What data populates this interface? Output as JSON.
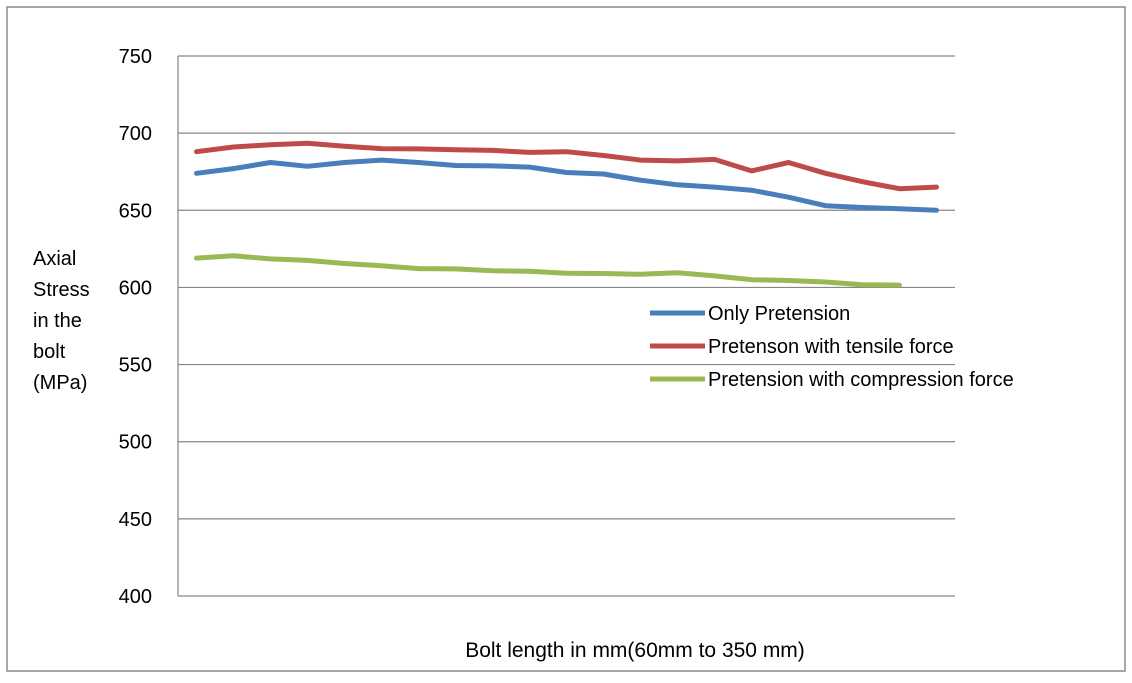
{
  "chart_data": {
    "type": "line",
    "title": "",
    "xlabel": "Bolt length in mm(60mm to 350 mm)",
    "ylabel_lines": [
      "Axial",
      "Stress",
      "in the",
      "bolt",
      "(MPa)"
    ],
    "ylim": [
      400,
      750
    ],
    "yticks": [
      400,
      450,
      500,
      550,
      600,
      650,
      700,
      750
    ],
    "grid": "horizontal",
    "legend_position": "right",
    "series": [
      {
        "name": "Only Pretension",
        "color": "#4a7ebb",
        "values": [
          674,
          677,
          681,
          678.5,
          681,
          682.5,
          681,
          679,
          678.8,
          678,
          674.5,
          673.5,
          669.5,
          666.5,
          665,
          663,
          658.5,
          653,
          651.8,
          651,
          650
        ]
      },
      {
        "name": "Pretenson with tensile force",
        "color": "#be4b48",
        "values": [
          688,
          691,
          692.5,
          693.5,
          691.5,
          690,
          689.8,
          689.2,
          688.8,
          687.5,
          688,
          685.5,
          682.5,
          682,
          683,
          675.5,
          681,
          674,
          668.5,
          664,
          665
        ]
      },
      {
        "name": "Pretension with compression force",
        "color": "#98b954",
        "values": [
          619,
          620.5,
          618.5,
          617.5,
          615.5,
          614,
          612.2,
          612,
          610.8,
          610.5,
          609.2,
          609,
          608.5,
          609.5,
          607.5,
          605,
          604.5,
          603.5,
          601.8,
          601.5
        ]
      }
    ]
  }
}
